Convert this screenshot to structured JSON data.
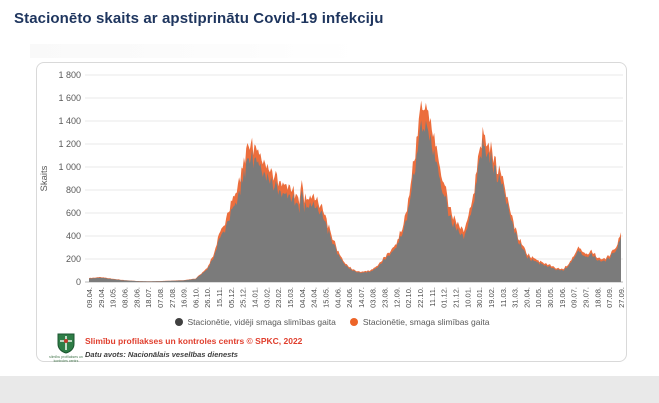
{
  "page": {
    "title": "Stacionēto skaits ar apstiprinātu Covid-19 infekciju",
    "title_color": "#1e355e",
    "background_color": "#ffffff",
    "bottom_strip_color": "#e9e9e9"
  },
  "legend": {
    "items": [
      {
        "label": "Stacionētie, vidēji smaga slimības gaita",
        "dot_color": "#404040"
      },
      {
        "label": "Stacionētie, smaga slimības gaita",
        "dot_color": "#ed6428"
      }
    ]
  },
  "footer": {
    "logo_icon": "spkc-coat-of-arms",
    "logo_caption": "slimību profilakses un kontroles centrs",
    "copyright_line": "Slimību profilakses un kontroles centrs © SPKC, 2022",
    "copyright_color": "#e03e2d",
    "source_line": "Datu avots: Nacionālais veselības dienests"
  },
  "chart_data": {
    "type": "area",
    "stacked": true,
    "title": "Stacionēto skaits ar apstiprinātu Covid-19 infekciju",
    "xlabel": "",
    "ylabel": "Skaits",
    "ylim": [
      0,
      1800
    ],
    "ytick_step": 200,
    "ytick_labels": [
      "0",
      "200",
      "400",
      "600",
      "800",
      "1 000",
      "1 200",
      "1 400",
      "1 600",
      "1 800"
    ],
    "grid": "horizontal",
    "legend_position": "bottom",
    "xtick_labels": [
      "09.04.",
      "29.04.",
      "19.05.",
      "08.06.",
      "28.06.",
      "18.07.",
      "07.08.",
      "27.08.",
      "16.09.",
      "06.10.",
      "26.10.",
      "15.11.",
      "05.12.",
      "25.12.",
      "14.01.",
      "03.02.",
      "23.02.",
      "15.03.",
      "04.04.",
      "24.04.",
      "15.05.",
      "04.06.",
      "24.06.",
      "14.07.",
      "03.08.",
      "23.08.",
      "12.09.",
      "02.10.",
      "22.10.",
      "11.11.",
      "01.12.",
      "21.12.",
      "10.01.",
      "30.01.",
      "19.02.",
      "11.03.",
      "31.03.",
      "20.04.",
      "10.05.",
      "30.05.",
      "19.06.",
      "09.07.",
      "29.07.",
      "18.08.",
      "07.09.",
      "27.09."
    ],
    "x_is_days_from_first_tick": true,
    "days_per_xtick": 20,
    "keypoint_days": [
      0,
      20,
      40,
      60,
      80,
      100,
      120,
      140,
      160,
      180,
      200,
      210,
      220,
      230,
      240,
      250,
      260,
      266,
      272,
      280,
      290,
      300,
      310,
      320,
      330,
      340,
      350,
      356,
      360,
      364,
      372,
      380,
      390,
      400,
      410,
      420,
      430,
      440,
      450,
      460,
      470,
      480,
      490,
      500,
      510,
      520,
      530,
      540,
      550,
      558,
      565,
      572,
      580,
      590,
      600,
      610,
      620,
      628,
      634,
      640,
      646,
      652,
      660,
      666,
      672,
      680,
      690,
      700,
      710,
      720,
      730,
      740,
      750,
      760,
      770,
      780,
      790,
      800,
      808,
      815,
      822,
      830,
      836,
      842,
      848,
      854,
      860,
      868,
      874,
      880,
      886,
      892,
      900
    ],
    "series": [
      {
        "name": "Stacionētie, vidēji smaga slimības gaita",
        "color": "#7b7b7b",
        "values": [
          31,
          37,
          24,
          14,
          8,
          5,
          7,
          10,
          14,
          26,
          108,
          205,
          355,
          460,
          585,
          725,
          890,
          1030,
          1105,
          1065,
          985,
          905,
          840,
          805,
          770,
          752,
          688,
          632,
          815,
          650,
          632,
          668,
          614,
          505,
          378,
          252,
          162,
          117,
          90,
          81,
          85,
          99,
          144,
          198,
          234,
          297,
          432,
          620,
          930,
          1220,
          1425,
          1320,
          1200,
          980,
          755,
          575,
          458,
          412,
          404,
          496,
          580,
          720,
          1060,
          1185,
          1140,
          1065,
          925,
          815,
          628,
          440,
          318,
          224,
          188,
          165,
          147,
          134,
          111,
          98,
          125,
          162,
          226,
          270,
          234,
          207,
          252,
          225,
          189,
          176,
          190,
          208,
          245,
          282,
          395
        ]
      },
      {
        "name": "Stacionētie, smaga slimības gaita",
        "color": "#ec6e3d",
        "values": [
          4,
          5,
          4,
          2,
          1,
          1,
          1,
          2,
          2,
          4,
          12,
          25,
          45,
          60,
          75,
          95,
          110,
          120,
          125,
          115,
          105,
          95,
          90,
          85,
          80,
          78,
          72,
          68,
          85,
          70,
          68,
          72,
          66,
          55,
          42,
          28,
          18,
          13,
          10,
          9,
          10,
          11,
          16,
          22,
          26,
          33,
          48,
          80,
          120,
          160,
          175,
          160,
          150,
          120,
          95,
          75,
          62,
          58,
          56,
          64,
          70,
          80,
          90,
          95,
          90,
          85,
          75,
          65,
          52,
          40,
          32,
          26,
          22,
          20,
          18,
          16,
          14,
          12,
          15,
          18,
          24,
          30,
          26,
          23,
          28,
          25,
          21,
          19,
          20,
          22,
          25,
          28,
          35
        ]
      }
    ]
  }
}
